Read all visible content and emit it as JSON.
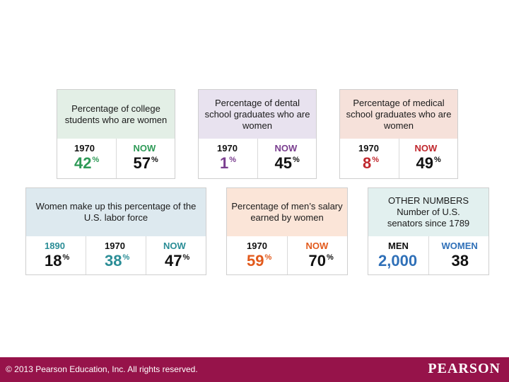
{
  "cards": {
    "college": {
      "title": "Percentage of college students who are women",
      "header_color": "#e3efe6",
      "stats": [
        {
          "label": "1970",
          "value": "42",
          "unit": "%"
        },
        {
          "label": "NOW",
          "value": "57",
          "unit": "%"
        }
      ]
    },
    "dental": {
      "title": "Percentage of dental school graduates who are women",
      "header_color": "#e8e2ef",
      "stats": [
        {
          "label": "1970",
          "value": "1",
          "unit": "%"
        },
        {
          "label": "NOW",
          "value": "45",
          "unit": "%"
        }
      ]
    },
    "medical": {
      "title": "Percentage of medical school graduates who are women",
      "header_color": "#f6e1da",
      "stats": [
        {
          "label": "1970",
          "value": "8",
          "unit": "%"
        },
        {
          "label": "NOW",
          "value": "49",
          "unit": "%"
        }
      ]
    },
    "labor": {
      "title": "Women make up this percentage of the U.S. labor force",
      "header_color": "#dde9ef",
      "stats": [
        {
          "label": "1890",
          "value": "18",
          "unit": "%"
        },
        {
          "label": "1970",
          "value": "38",
          "unit": "%"
        },
        {
          "label": "NOW",
          "value": "47",
          "unit": "%"
        }
      ]
    },
    "salary": {
      "title": "Percentage of men’s salary earned by women",
      "header_color": "#fbe5d8",
      "stats": [
        {
          "label": "1970",
          "value": "59",
          "unit": "%"
        },
        {
          "label": "NOW",
          "value": "70",
          "unit": "%"
        }
      ]
    },
    "senators": {
      "title_line1": "OTHER NUMBERS",
      "title_line2": "Number of U.S. senators since 1789",
      "header_color": "#e2f0ef",
      "stats": [
        {
          "label": "MEN",
          "value": "2,000"
        },
        {
          "label": "WOMEN",
          "value": "38"
        }
      ]
    }
  },
  "footer": {
    "copyright": "© 2013  Pearson Education, Inc. All rights reserved.",
    "brand": "PEARSON",
    "color": "#96134a"
  }
}
